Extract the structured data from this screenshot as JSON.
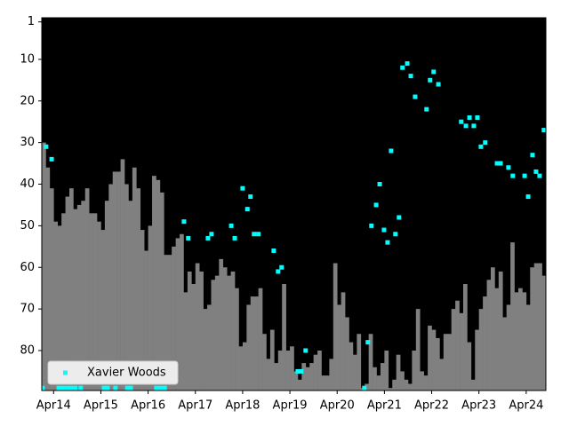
{
  "chart_data": {
    "type": "bar",
    "legend": "lower left",
    "xlim": [
      -3,
      125
    ],
    "ylim": [
      89.6,
      0
    ],
    "xticks": [
      {
        "value": 0,
        "label": "Apr14"
      },
      {
        "value": 12,
        "label": "Apr15"
      },
      {
        "value": 24,
        "label": "Apr16"
      },
      {
        "value": 36,
        "label": "Apr17"
      },
      {
        "value": 48,
        "label": "Apr18"
      },
      {
        "value": 60,
        "label": "Apr19"
      },
      {
        "value": 72,
        "label": "Apr20"
      },
      {
        "value": 84,
        "label": "Apr21"
      },
      {
        "value": 96,
        "label": "Apr22"
      },
      {
        "value": 108,
        "label": "Apr23"
      },
      {
        "value": 120,
        "label": "Apr24"
      }
    ],
    "yticks": [
      1,
      10,
      20,
      30,
      40,
      50,
      60,
      70,
      80
    ],
    "series": [
      {
        "type": "bar",
        "color": "#808080",
        "x": [
          -3,
          -2,
          -1,
          0,
          1,
          2,
          3,
          4,
          5,
          6,
          7,
          8,
          9,
          10,
          11,
          12,
          13,
          14,
          15,
          16,
          17,
          18,
          19,
          20,
          21,
          22,
          23,
          24,
          25,
          26,
          27,
          28,
          29,
          30,
          31,
          32,
          33,
          34,
          35,
          36,
          37,
          38,
          39,
          40,
          41,
          42,
          43,
          44,
          45,
          46,
          47,
          48,
          49,
          50,
          51,
          52,
          53,
          54,
          55,
          56,
          57,
          58,
          59,
          60,
          61,
          62,
          63,
          64,
          65,
          66,
          67,
          68,
          69,
          70,
          71,
          72,
          73,
          74,
          75,
          76,
          77,
          78,
          79,
          80,
          81,
          82,
          83,
          84,
          85,
          86,
          87,
          88,
          89,
          90,
          91,
          92,
          93,
          94,
          95,
          96,
          97,
          98,
          99,
          100,
          101,
          102,
          103,
          104,
          105,
          106,
          107,
          108,
          109,
          110,
          111,
          112,
          113,
          114,
          115,
          116,
          117,
          118,
          119,
          120,
          121,
          122,
          123,
          124
        ],
        "values": [
          30,
          36,
          41,
          49,
          50,
          47,
          43,
          41,
          46,
          45,
          44,
          41,
          47,
          47,
          49,
          51,
          44,
          40,
          37,
          37,
          34,
          40,
          44,
          36,
          41,
          51,
          56,
          50,
          38,
          39,
          42,
          57,
          57,
          55,
          53,
          52,
          66,
          61,
          64,
          59,
          61,
          70,
          69,
          63,
          62,
          58,
          60,
          62,
          61,
          65,
          79,
          78,
          69,
          67,
          67,
          65,
          76,
          82,
          75,
          83,
          80,
          64,
          80,
          79,
          85,
          87,
          83,
          84,
          83,
          81,
          80,
          86,
          86,
          82,
          59,
          69,
          66,
          72,
          78,
          81,
          76,
          89,
          88,
          76,
          84,
          86,
          83,
          80,
          89,
          87,
          81,
          85,
          87,
          88,
          80,
          70,
          85,
          86,
          74,
          75,
          77,
          82,
          76,
          76,
          70,
          68,
          71,
          64,
          78,
          87,
          75,
          70,
          67,
          63,
          60,
          65,
          61,
          72,
          69,
          54,
          66,
          65,
          66,
          69,
          60,
          59,
          59,
          62
        ]
      },
      {
        "type": "scatter",
        "name": "Xavier Woods",
        "color": "#00ffff",
        "x": [
          -2.8,
          -1.9,
          -0.5,
          1.3,
          2.4,
          3.5,
          4.4,
          5.5,
          6.9,
          12.8,
          13.7,
          15.7,
          18.7,
          19.6,
          26.1,
          27.2,
          28.2,
          33.1,
          34.2,
          39.2,
          40.1,
          45.1,
          46.0,
          48.0,
          49.2,
          50.0,
          50.9,
          52.0,
          55.9,
          57.0,
          57.9,
          62.0,
          62.9,
          64.0,
          78.9,
          79.8,
          80.7,
          81.9,
          82.8,
          83.9,
          84.8,
          85.7,
          86.8,
          87.7,
          88.6,
          89.8,
          90.7,
          91.8,
          94.7,
          95.6,
          96.5,
          97.7,
          103.5,
          104.7,
          105.6,
          106.7,
          107.6,
          108.5,
          109.6,
          112.6,
          113.5,
          115.5,
          116.6,
          119.6,
          120.5,
          121.6,
          122.5,
          123.4,
          124.5
        ],
        "values": [
          89,
          31,
          34,
          89,
          89,
          89,
          89,
          89,
          89,
          89,
          89,
          89,
          89,
          89,
          89,
          89,
          89,
          49,
          53,
          53,
          52,
          50,
          53,
          41,
          46,
          43,
          52,
          52,
          56,
          61,
          60,
          85,
          85,
          80,
          89,
          78,
          50,
          45,
          40,
          51,
          54,
          32,
          52,
          48,
          12,
          11,
          14,
          19,
          22,
          15,
          13,
          16,
          25,
          26,
          24,
          26,
          24,
          31,
          30,
          35,
          35,
          36,
          38,
          38,
          43,
          33,
          37,
          38,
          27
        ]
      }
    ]
  }
}
